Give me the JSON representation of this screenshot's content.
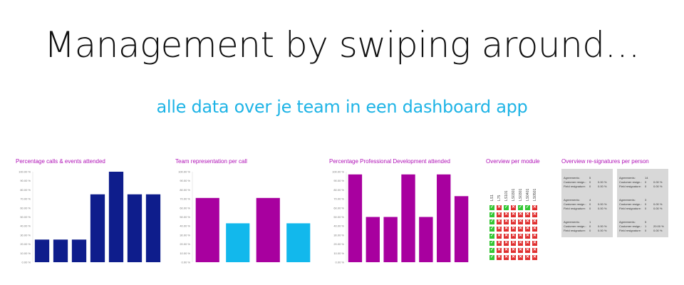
{
  "headline": "Management by swiping around…",
  "subline": "alle data over je team in een dashboard app",
  "colors": {
    "headline": "#111111",
    "subline": "#1fb4e6",
    "panel_title": "#b012b7",
    "navy": "#0e1d8c",
    "magenta": "#a8009f",
    "cyan": "#12b8ec",
    "check_green": "#33c633",
    "cross_red": "#e03030",
    "card_bg": "#d8d8d8"
  },
  "panels": {
    "calls": {
      "title": "Percentage calls & events attended"
    },
    "team": {
      "title": "Team representation per call"
    },
    "development": {
      "title": "Percentage Professional Development attended"
    },
    "modules": {
      "title": "Overview per module"
    },
    "resignatures": {
      "title": "Overview re-signatures per person"
    }
  },
  "chart_data": [
    {
      "type": "bar",
      "title": "Percentage calls & events attended",
      "ylim": [
        0,
        100
      ],
      "yticks": [
        "0.00 %",
        "10.00 %",
        "20.00 %",
        "30.00 %",
        "40.00 %",
        "50.00 %",
        "60.00 %",
        "70.00 %",
        "80.00 %",
        "90.00 %",
        "100.00 %"
      ],
      "values": [
        25,
        25,
        25,
        75,
        100,
        75,
        75
      ],
      "colors": [
        "#0e1d8c",
        "#0e1d8c",
        "#0e1d8c",
        "#0e1d8c",
        "#0e1d8c",
        "#0e1d8c",
        "#0e1d8c"
      ],
      "grid": false
    },
    {
      "type": "bar",
      "title": "Team representation per call",
      "ylim": [
        0,
        100
      ],
      "yticks": [
        "0.00 %",
        "10.00 %",
        "20.00 %",
        "30.00 %",
        "40.00 %",
        "50.00 %",
        "60.00 %",
        "70.00 %",
        "80.00 %",
        "90.00 %",
        "100.00 %"
      ],
      "values": [
        71,
        43,
        71,
        43
      ],
      "colors": [
        "#a8009f",
        "#12b8ec",
        "#a8009f",
        "#12b8ec"
      ],
      "grid": false
    },
    {
      "type": "bar",
      "title": "Percentage Professional Development attended",
      "ylim": [
        0,
        100
      ],
      "yticks": [
        "0.00 %",
        "10.00 %",
        "20.00 %",
        "30.00 %",
        "40.00 %",
        "50.00 %",
        "60.00 %",
        "70.00 %",
        "80.00 %",
        "90.00 %",
        "100.00 %"
      ],
      "values": [
        97,
        50,
        50,
        97,
        50,
        97,
        73
      ],
      "colors": [
        "#a8009f",
        "#a8009f",
        "#a8009f",
        "#a8009f",
        "#a8009f",
        "#a8009f",
        "#a8009f"
      ],
      "grid": false
    }
  ],
  "modules": {
    "headers": [
      "LS1",
      "L75",
      "LS101",
      "LS0301",
      "LS0301",
      "LS0401",
      "LS0501"
    ],
    "grid": [
      [
        "ok",
        "no",
        "ok",
        "no",
        "ok",
        "ok",
        "no"
      ],
      [
        "ok",
        "no",
        "no",
        "no",
        "no",
        "no",
        "no"
      ],
      [
        "ok",
        "no",
        "no",
        "no",
        "no",
        "no",
        "no"
      ],
      [
        "ok",
        "no",
        "no",
        "no",
        "no",
        "no",
        "no"
      ],
      [
        "ok",
        "no",
        "no",
        "no",
        "no",
        "no",
        "no"
      ],
      [
        "ok",
        "no",
        "no",
        "no",
        "no",
        "no",
        "no"
      ],
      [
        "ok",
        "no",
        "no",
        "no",
        "no",
        "no",
        "no"
      ],
      [
        "ok",
        "no",
        "no",
        "no",
        "no",
        "no",
        "no"
      ]
    ]
  },
  "resignature_labels": [
    "Agreements:",
    "Customer resign.:",
    "Field resignature:"
  ],
  "resignature_cards": [
    {
      "agreements": "5",
      "customer": "0",
      "customer_pct": "0.00 %",
      "field": "0",
      "field_pct": "0.00 %"
    },
    {
      "agreements": "14",
      "customer": "0",
      "customer_pct": "0.00 %",
      "field": "0",
      "field_pct": "0.00 %"
    },
    {
      "agreements": "4",
      "customer": "0",
      "customer_pct": "0.00 %",
      "field": "0",
      "field_pct": "0.00 %"
    },
    {
      "agreements": "3",
      "customer": "0",
      "customer_pct": "0.00 %",
      "field": "0",
      "field_pct": "0.00 %"
    },
    {
      "agreements": "1",
      "customer": "0",
      "customer_pct": "0.00 %",
      "field": "0",
      "field_pct": "0.00 %"
    },
    {
      "agreements": "5",
      "customer": "1",
      "customer_pct": "20.00 %",
      "field": "0",
      "field_pct": "0.00 %"
    }
  ]
}
